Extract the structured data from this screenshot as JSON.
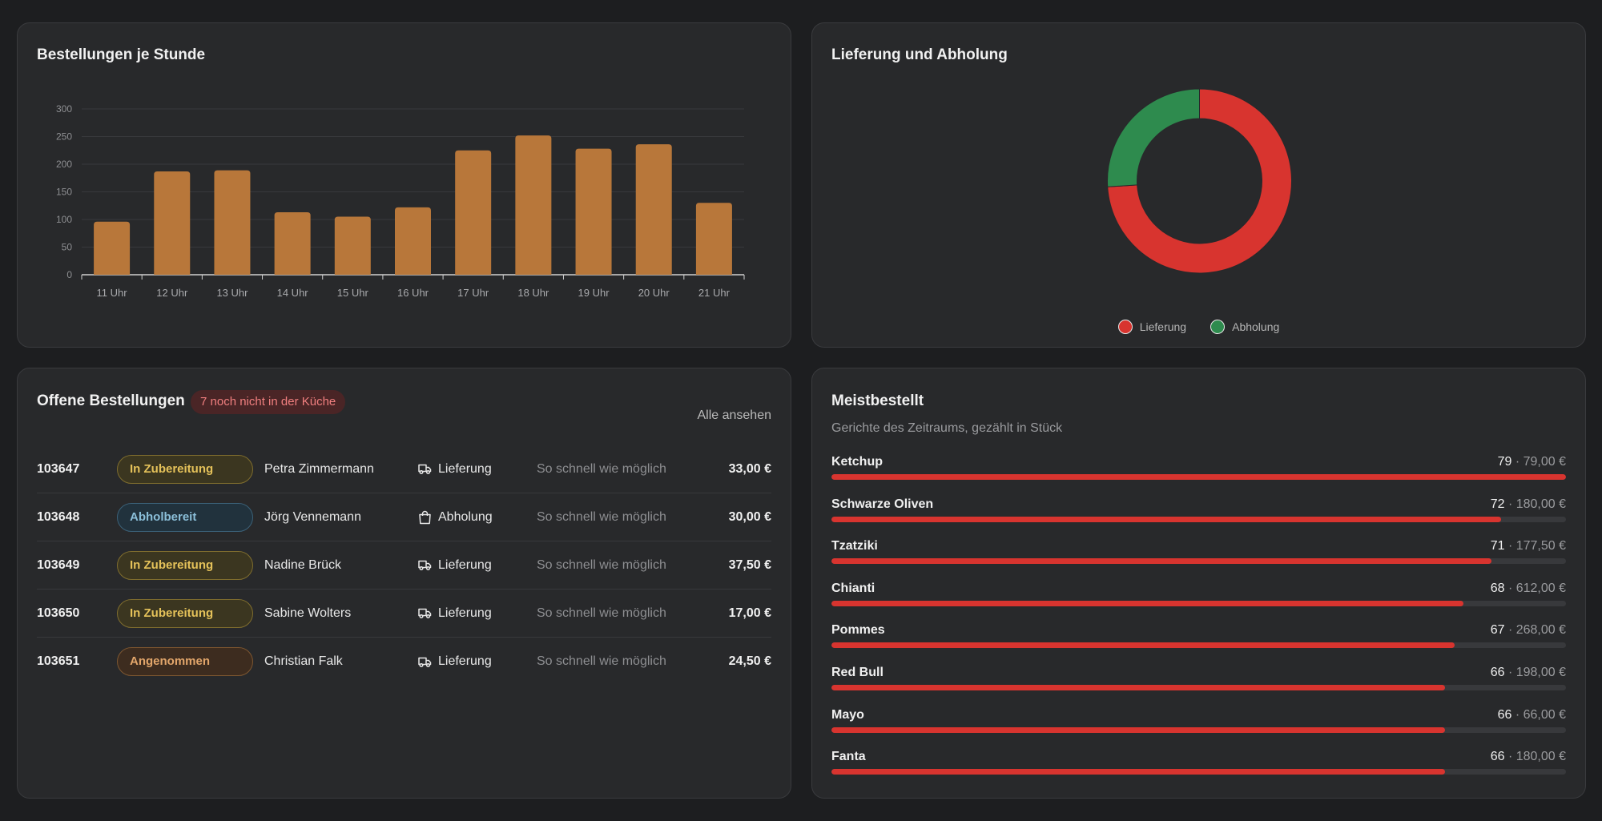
{
  "colors": {
    "bar": "#b8773a",
    "delivery": "#d8342f",
    "pickup": "#2e8b4e",
    "progress": "#d8342f"
  },
  "orders_per_hour": {
    "title": "Bestellungen je Stunde",
    "chart_data": {
      "type": "bar",
      "categories": [
        "11 Uhr",
        "12 Uhr",
        "13 Uhr",
        "14 Uhr",
        "15 Uhr",
        "16 Uhr",
        "17 Uhr",
        "18 Uhr",
        "19 Uhr",
        "20 Uhr",
        "21 Uhr"
      ],
      "values": [
        96,
        187,
        189,
        113,
        105,
        122,
        225,
        252,
        228,
        236,
        130
      ],
      "ylim": [
        0,
        300
      ],
      "yticks": [
        0,
        50,
        100,
        150,
        200,
        250,
        300
      ],
      "grid": true
    }
  },
  "delivery_pickup": {
    "title": "Lieferung und Abholung",
    "chart_data": {
      "type": "pie",
      "donut": true,
      "labels": [
        "Lieferung",
        "Abholung"
      ],
      "values": [
        74,
        26
      ],
      "legend": "bottom"
    }
  },
  "open_orders": {
    "title": "Offene Bestellungen",
    "badge": "7 noch nicht in der Küche",
    "see_all": "Alle ansehen",
    "rows": [
      {
        "id": "103647",
        "status": "In Zubereitung",
        "status_kind": "prep",
        "name": "Petra Zimmermann",
        "type": "Lieferung",
        "type_icon": "truck-icon",
        "time": "So schnell wie möglich",
        "price": "33,00 €"
      },
      {
        "id": "103648",
        "status": "Abholbereit",
        "status_kind": "ready",
        "name": "Jörg Vennemann",
        "type": "Abholung",
        "type_icon": "shopping-bag-icon",
        "time": "So schnell wie möglich",
        "price": "30,00 €"
      },
      {
        "id": "103649",
        "status": "In Zubereitung",
        "status_kind": "prep",
        "name": "Nadine Brück",
        "type": "Lieferung",
        "type_icon": "truck-icon",
        "time": "So schnell wie möglich",
        "price": "37,50 €"
      },
      {
        "id": "103650",
        "status": "In Zubereitung",
        "status_kind": "prep",
        "name": "Sabine Wolters",
        "type": "Lieferung",
        "type_icon": "truck-icon",
        "time": "So schnell wie möglich",
        "price": "17,00 €"
      },
      {
        "id": "103651",
        "status": "Angenommen",
        "status_kind": "accepted",
        "name": "Christian Falk",
        "type": "Lieferung",
        "type_icon": "truck-icon",
        "time": "So schnell wie möglich",
        "price": "24,50 €"
      }
    ]
  },
  "top_items": {
    "title": "Meistbestellt",
    "subtitle": "Gerichte des Zeitraums, gezählt in Stück",
    "max": 79,
    "items": [
      {
        "name": "Ketchup",
        "count": "79",
        "amount": " · 79,00 €",
        "value": 79
      },
      {
        "name": "Schwarze Oliven",
        "count": "72",
        "amount": " · 180,00 €",
        "value": 72
      },
      {
        "name": "Tzatziki",
        "count": "71",
        "amount": " · 177,50 €",
        "value": 71
      },
      {
        "name": "Chianti",
        "count": "68",
        "amount": " · 612,00 €",
        "value": 68
      },
      {
        "name": "Pommes",
        "count": "67",
        "amount": " · 268,00 €",
        "value": 67
      },
      {
        "name": "Red Bull",
        "count": "66",
        "amount": " · 198,00 €",
        "value": 66
      },
      {
        "name": "Mayo",
        "count": "66",
        "amount": " · 66,00 €",
        "value": 66
      },
      {
        "name": "Fanta",
        "count": "66",
        "amount": " · 180,00 €",
        "value": 66
      }
    ]
  }
}
